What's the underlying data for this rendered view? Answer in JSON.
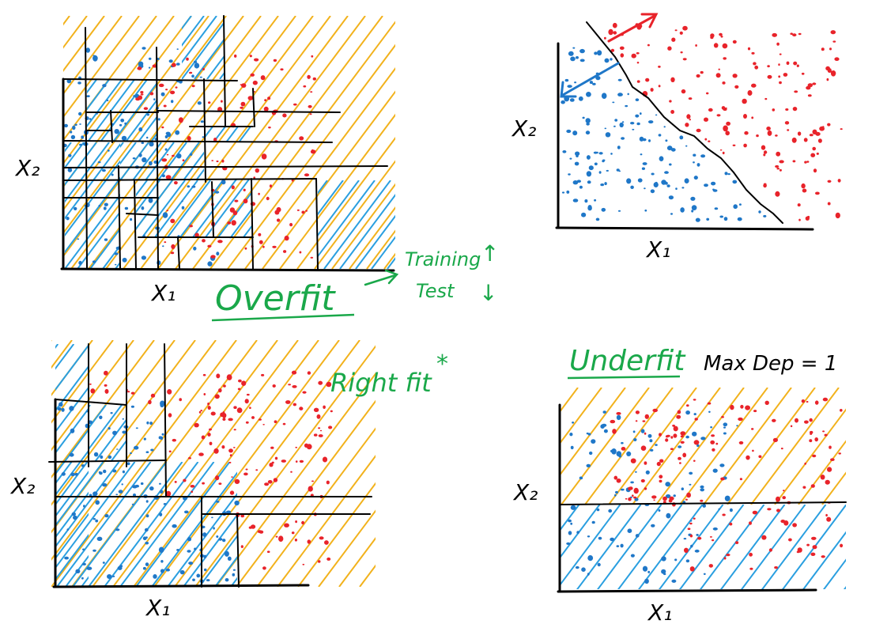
{
  "axis_labels": {
    "x1": "X₁",
    "x2": "X₂"
  },
  "annotations": {
    "overfit": "Overfit",
    "training": "Training",
    "training_arrow": "↑",
    "test": "Test",
    "test_arrow": "↓",
    "right_fit": "Right fit",
    "right_fit_star": "*",
    "underfit": "Underfit",
    "max_depth": "Max Dep = 1"
  },
  "colors": {
    "class_red": "#e8232a",
    "class_blue": "#1f77c8",
    "hatch_orange": "#f2b21c",
    "hatch_blue": "#2a9fe0",
    "annotation_green": "#1aa84a",
    "ink": "#000000"
  }
}
